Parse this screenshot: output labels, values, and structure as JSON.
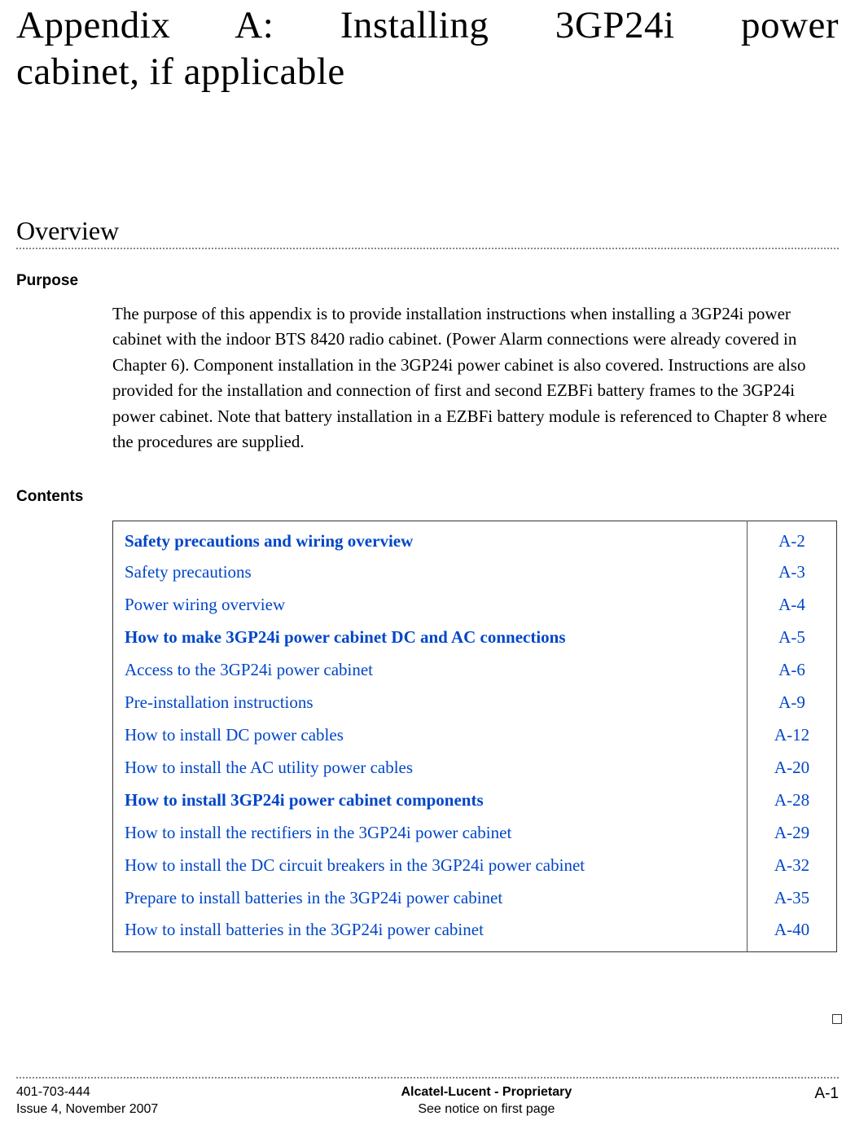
{
  "title_line1": "Appendix A:  Installing 3GP24i power",
  "title_line2": "cabinet, if applicable",
  "overview_heading": "Overview",
  "purpose_heading": "Purpose",
  "purpose_body": "The purpose of this appendix is to provide installation instructions when installing a 3GP24i power cabinet with the indoor BTS 8420 radio cabinet. (Power Alarm connections were already covered in Chapter 6). Component installation in the 3GP24i power cabinet is also covered. Instructions are also provided for the installation and connection of first and second EZBFi battery frames to the 3GP24i power cabinet. Note that battery installation in a EZBFi battery module is referenced to Chapter 8 where the procedures are supplied.",
  "contents_heading": "Contents",
  "toc": [
    {
      "label": "Safety precautions and wiring overview",
      "page": "A-2",
      "bold": true
    },
    {
      "label": "Safety precautions",
      "page": "A-3",
      "bold": false
    },
    {
      "label": "Power wiring overview",
      "page": "A-4",
      "bold": false
    },
    {
      "label": "How to make 3GP24i power cabinet DC and AC connections",
      "page": "A-5",
      "bold": true
    },
    {
      "label": "Access to the 3GP24i power cabinet",
      "page": "A-6",
      "bold": false
    },
    {
      "label": "Pre-installation instructions",
      "page": "A-9",
      "bold": false
    },
    {
      "label": "How to install DC power cables",
      "page": "A-12",
      "bold": false
    },
    {
      "label": "How to install the AC utility power cables",
      "page": "A-20",
      "bold": false
    },
    {
      "label": "How to install 3GP24i power cabinet components",
      "page": "A-28",
      "bold": true
    },
    {
      "label": "How to install the rectifiers in the 3GP24i power cabinet",
      "page": "A-29",
      "bold": false
    },
    {
      "label": "How to install the DC circuit breakers in the 3GP24i power cabinet",
      "page": "A-32",
      "bold": false
    },
    {
      "label": "Prepare to install batteries in the 3GP24i power cabinet",
      "page": "A-35",
      "bold": false
    },
    {
      "label": "How to install batteries in the 3GP24i power cabinet",
      "page": "A-40",
      "bold": false
    }
  ],
  "footer": {
    "doc_number": "401-703-444",
    "issue": "Issue 4, November 2007",
    "center_top": "Alcatel-Lucent - Proprietary",
    "center_bottom": "See notice on first page",
    "page_number": "A-1"
  },
  "colors": {
    "link": "#0046c8",
    "text": "#000000",
    "rule": "#888888",
    "border": "#333333"
  }
}
